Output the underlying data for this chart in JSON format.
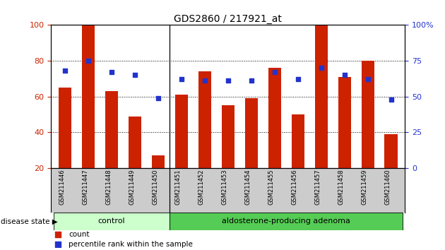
{
  "title": "GDS2860 / 217921_at",
  "samples": [
    "GSM211446",
    "GSM211447",
    "GSM211448",
    "GSM211449",
    "GSM211450",
    "GSM211451",
    "GSM211452",
    "GSM211453",
    "GSM211454",
    "GSM211455",
    "GSM211456",
    "GSM211457",
    "GSM211458",
    "GSM211459",
    "GSM211460"
  ],
  "bar_values": [
    65,
    100,
    63,
    49,
    27,
    61,
    74,
    55,
    59,
    76,
    50,
    100,
    71,
    80,
    39
  ],
  "dot_values_pct": [
    68,
    75,
    67,
    65,
    49,
    62,
    61,
    61,
    61,
    67,
    62,
    70,
    65,
    62,
    48
  ],
  "bar_color": "#cc2200",
  "dot_color": "#2233cc",
  "ylim_left": [
    20,
    100
  ],
  "ylim_right": [
    0,
    100
  ],
  "yticks_left": [
    20,
    40,
    60,
    80,
    100
  ],
  "ytick_labels_left": [
    "20",
    "40",
    "60",
    "80",
    "100"
  ],
  "yticks_right_vals": [
    0,
    25,
    50,
    75,
    100
  ],
  "ytick_labels_right": [
    "0",
    "25",
    "50",
    "75",
    "100%"
  ],
  "n_control": 5,
  "control_label": "control",
  "adenoma_label": "aldosterone-producing adenoma",
  "disease_state_label": "disease state",
  "legend_count_label": "count",
  "legend_pct_label": "percentile rank within the sample",
  "bar_width": 0.55,
  "background_color": "#ffffff",
  "control_bg": "#ccffcc",
  "adenoma_bg": "#55cc55",
  "tick_label_area_bg": "#cccccc",
  "title_fontsize": 10,
  "axis_label_fontsize": 8,
  "sample_label_fontsize": 6
}
